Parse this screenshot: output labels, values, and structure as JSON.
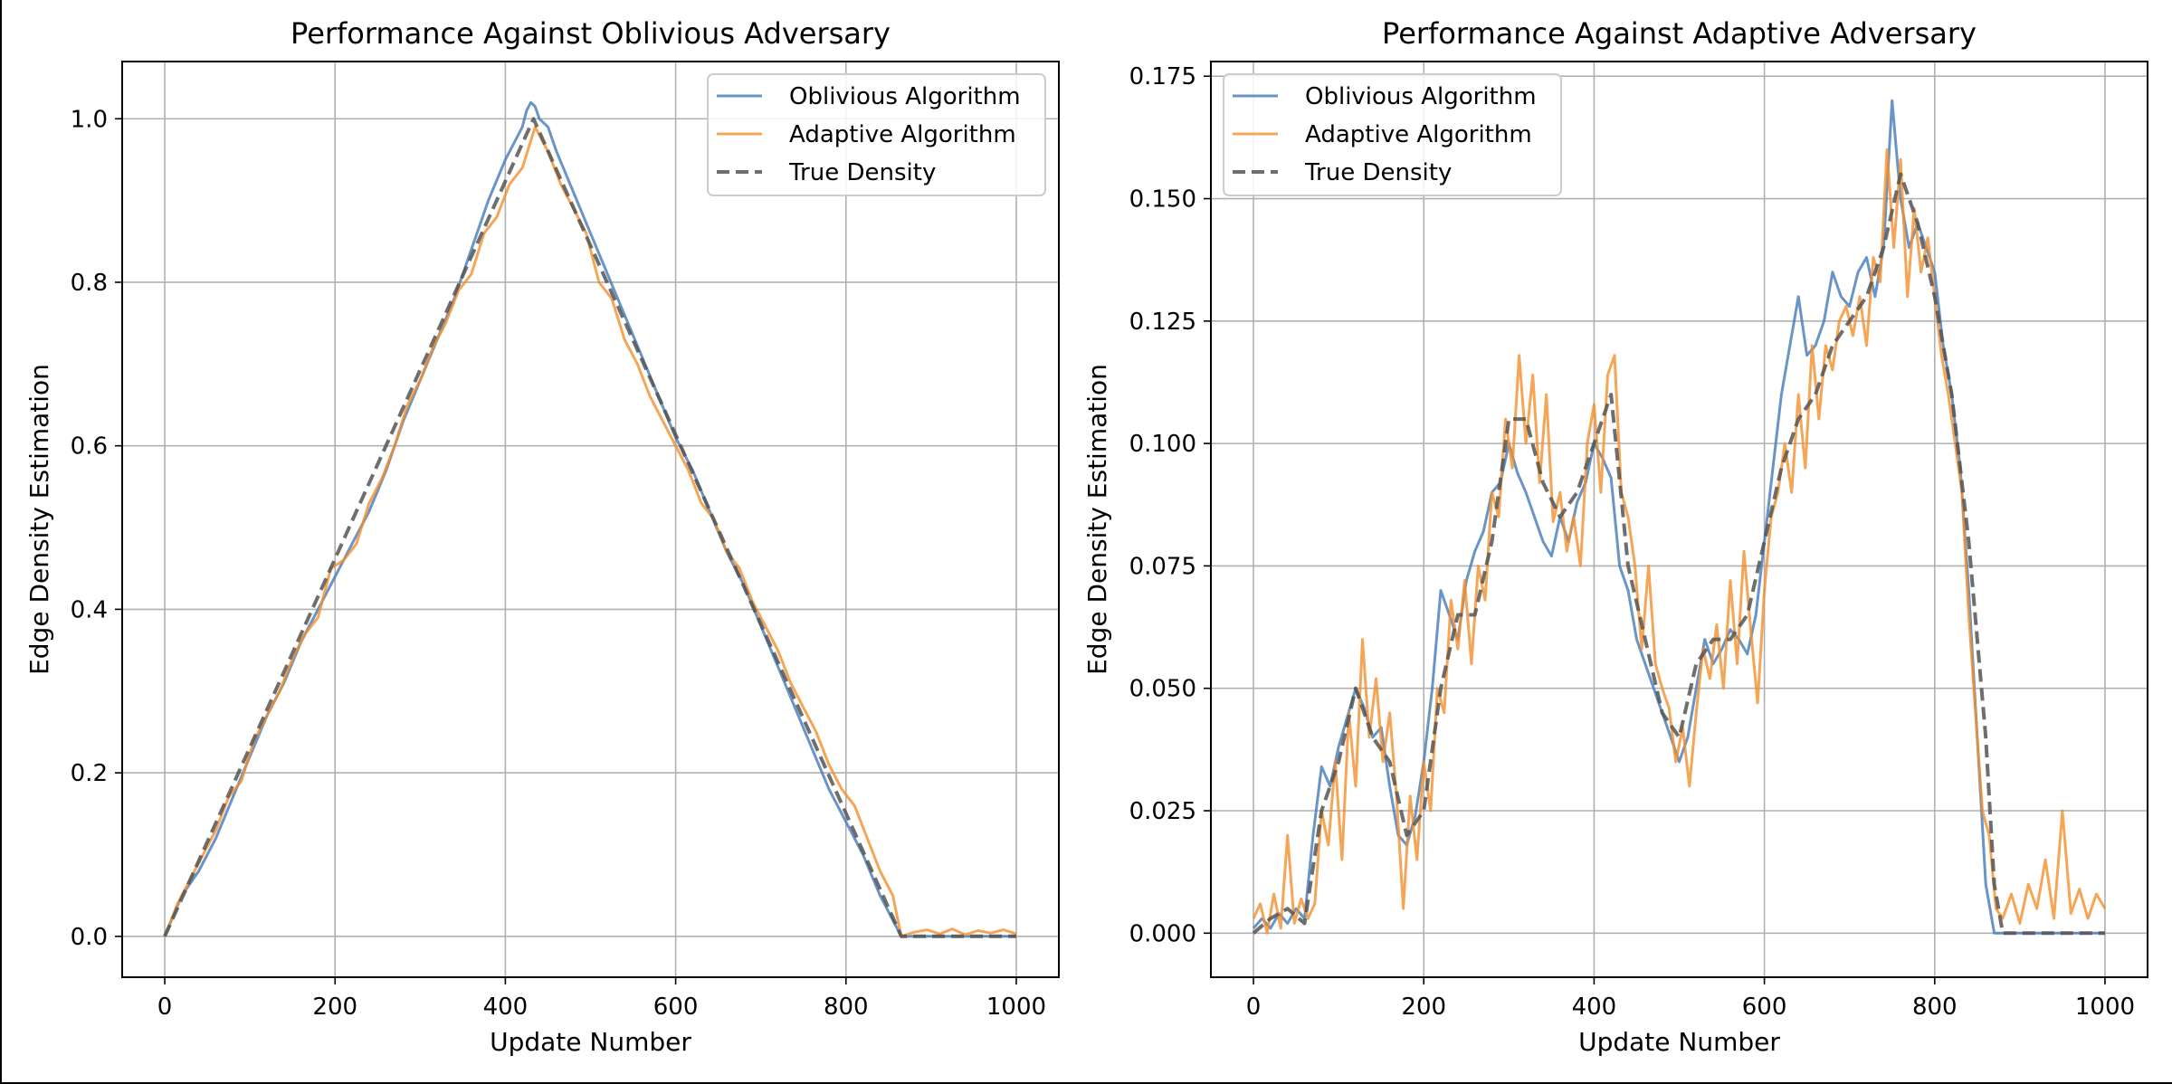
{
  "colors": {
    "oblivious": "#4f81bd",
    "adaptive": "#f28e2b",
    "true_density": "#555555",
    "grid": "#b0b0b0"
  },
  "chart_data": [
    {
      "type": "line",
      "title": "Performance Against Oblivious Adversary",
      "xlabel": "Update Number",
      "ylabel": "Edge Density Estimation",
      "xlim": [
        -50,
        1050
      ],
      "ylim": [
        -0.05,
        1.07
      ],
      "xticks": [
        0,
        200,
        400,
        600,
        800,
        1000
      ],
      "xtick_labels": [
        "0",
        "200",
        "400",
        "600",
        "800",
        "1000"
      ],
      "yticks": [
        0.0,
        0.2,
        0.4,
        0.6,
        0.8,
        1.0
      ],
      "ytick_labels": [
        "0.0",
        "0.2",
        "0.4",
        "0.6",
        "0.8",
        "1.0"
      ],
      "grid": true,
      "legend_position": "upper right",
      "series": [
        {
          "name": "Oblivious Algorithm",
          "style": "solid",
          "x": [
            0,
            20,
            40,
            60,
            80,
            100,
            120,
            140,
            160,
            180,
            200,
            220,
            240,
            260,
            280,
            300,
            320,
            340,
            360,
            380,
            400,
            410,
            420,
            425,
            430,
            435,
            440,
            450,
            460,
            480,
            500,
            520,
            540,
            560,
            580,
            600,
            620,
            640,
            660,
            680,
            700,
            720,
            740,
            760,
            780,
            800,
            820,
            840,
            860,
            865,
            880,
            900,
            920,
            940,
            960,
            980,
            1000
          ],
          "y": [
            0.0,
            0.05,
            0.08,
            0.12,
            0.17,
            0.22,
            0.27,
            0.31,
            0.36,
            0.4,
            0.44,
            0.48,
            0.52,
            0.57,
            0.63,
            0.68,
            0.73,
            0.78,
            0.84,
            0.9,
            0.95,
            0.97,
            0.99,
            1.01,
            1.02,
            1.015,
            1.0,
            0.99,
            0.96,
            0.91,
            0.86,
            0.81,
            0.76,
            0.71,
            0.66,
            0.61,
            0.57,
            0.52,
            0.47,
            0.43,
            0.38,
            0.33,
            0.28,
            0.23,
            0.18,
            0.14,
            0.1,
            0.05,
            0.01,
            0.0,
            0.0,
            0.0,
            0.0,
            0.0,
            0.0,
            0.0,
            0.0
          ]
        },
        {
          "name": "Adaptive Algorithm",
          "style": "solid",
          "x": [
            0,
            15,
            30,
            45,
            60,
            75,
            90,
            105,
            120,
            135,
            150,
            165,
            180,
            195,
            210,
            225,
            240,
            255,
            270,
            285,
            300,
            315,
            330,
            345,
            360,
            375,
            390,
            405,
            420,
            435,
            450,
            465,
            480,
            495,
            510,
            525,
            540,
            555,
            570,
            585,
            600,
            615,
            630,
            645,
            660,
            675,
            690,
            705,
            720,
            735,
            750,
            765,
            780,
            795,
            810,
            825,
            840,
            855,
            865,
            880,
            895,
            910,
            925,
            940,
            955,
            970,
            985,
            1000
          ],
          "y": [
            0.0,
            0.04,
            0.07,
            0.1,
            0.13,
            0.17,
            0.19,
            0.24,
            0.27,
            0.3,
            0.34,
            0.37,
            0.39,
            0.45,
            0.46,
            0.48,
            0.53,
            0.56,
            0.6,
            0.65,
            0.68,
            0.72,
            0.75,
            0.79,
            0.81,
            0.86,
            0.88,
            0.92,
            0.94,
            0.99,
            0.96,
            0.92,
            0.89,
            0.86,
            0.8,
            0.78,
            0.73,
            0.7,
            0.66,
            0.63,
            0.6,
            0.57,
            0.53,
            0.51,
            0.47,
            0.45,
            0.41,
            0.38,
            0.35,
            0.31,
            0.28,
            0.25,
            0.21,
            0.18,
            0.16,
            0.12,
            0.08,
            0.05,
            0.0,
            0.005,
            0.008,
            0.003,
            0.009,
            0.002,
            0.007,
            0.004,
            0.008,
            0.003
          ]
        },
        {
          "name": "True Density",
          "style": "dashed",
          "x": [
            0,
            433,
            865,
            1000
          ],
          "y": [
            0.0,
            1.0,
            0.0,
            0.0
          ]
        }
      ]
    },
    {
      "type": "line",
      "title": "Performance Against Adaptive Adversary",
      "xlabel": "Update Number",
      "ylabel": "Edge Density Estimation",
      "xlim": [
        -50,
        1050
      ],
      "ylim": [
        -0.009,
        0.178
      ],
      "xticks": [
        0,
        200,
        400,
        600,
        800,
        1000
      ],
      "xtick_labels": [
        "0",
        "200",
        "400",
        "600",
        "800",
        "1000"
      ],
      "yticks": [
        0.0,
        0.025,
        0.05,
        0.075,
        0.1,
        0.125,
        0.15,
        0.175
      ],
      "ytick_labels": [
        "0.000",
        "0.025",
        "0.050",
        "0.075",
        "0.100",
        "0.125",
        "0.150",
        "0.175"
      ],
      "grid": true,
      "legend_position": "upper left",
      "series": [
        {
          "name": "Oblivious Algorithm",
          "style": "solid",
          "x": [
            0,
            10,
            20,
            30,
            40,
            50,
            60,
            70,
            80,
            90,
            100,
            110,
            120,
            130,
            140,
            150,
            160,
            170,
            180,
            190,
            200,
            210,
            220,
            230,
            240,
            250,
            260,
            270,
            280,
            290,
            300,
            310,
            320,
            330,
            340,
            350,
            360,
            370,
            380,
            390,
            400,
            410,
            420,
            430,
            440,
            450,
            460,
            470,
            480,
            490,
            500,
            510,
            520,
            530,
            540,
            550,
            560,
            570,
            580,
            590,
            600,
            610,
            620,
            630,
            640,
            650,
            660,
            670,
            680,
            690,
            700,
            710,
            720,
            730,
            740,
            745,
            750,
            760,
            770,
            780,
            790,
            800,
            810,
            820,
            830,
            840,
            850,
            860,
            870,
            880,
            900,
            920,
            940,
            960,
            980,
            1000
          ],
          "y": [
            0.001,
            0.003,
            0.001,
            0.004,
            0.002,
            0.005,
            0.003,
            0.02,
            0.034,
            0.03,
            0.038,
            0.044,
            0.05,
            0.046,
            0.04,
            0.042,
            0.03,
            0.02,
            0.018,
            0.024,
            0.035,
            0.05,
            0.07,
            0.065,
            0.06,
            0.072,
            0.078,
            0.082,
            0.09,
            0.092,
            0.1,
            0.094,
            0.09,
            0.085,
            0.08,
            0.077,
            0.085,
            0.08,
            0.088,
            0.092,
            0.1,
            0.097,
            0.093,
            0.075,
            0.07,
            0.06,
            0.055,
            0.05,
            0.045,
            0.04,
            0.035,
            0.04,
            0.05,
            0.06,
            0.055,
            0.058,
            0.062,
            0.06,
            0.057,
            0.065,
            0.08,
            0.095,
            0.11,
            0.12,
            0.13,
            0.118,
            0.12,
            0.125,
            0.135,
            0.13,
            0.128,
            0.135,
            0.138,
            0.13,
            0.14,
            0.155,
            0.17,
            0.15,
            0.14,
            0.145,
            0.14,
            0.135,
            0.12,
            0.11,
            0.095,
            0.07,
            0.04,
            0.01,
            0.0,
            0.0,
            0.0,
            0.0,
            0.0,
            0.0,
            0.0,
            0.0
          ]
        },
        {
          "name": "Adaptive Algorithm",
          "style": "solid",
          "x": [
            0,
            8,
            16,
            24,
            32,
            40,
            48,
            56,
            64,
            72,
            80,
            88,
            96,
            104,
            112,
            120,
            128,
            136,
            144,
            152,
            160,
            168,
            176,
            184,
            192,
            200,
            208,
            216,
            224,
            232,
            240,
            248,
            256,
            264,
            272,
            280,
            288,
            296,
            304,
            312,
            320,
            328,
            336,
            344,
            352,
            360,
            368,
            376,
            384,
            392,
            400,
            408,
            416,
            424,
            432,
            440,
            448,
            456,
            464,
            472,
            480,
            488,
            496,
            504,
            512,
            520,
            528,
            536,
            544,
            552,
            560,
            568,
            576,
            584,
            592,
            600,
            608,
            616,
            624,
            632,
            640,
            648,
            656,
            664,
            672,
            680,
            688,
            696,
            704,
            712,
            720,
            728,
            736,
            744,
            752,
            760,
            768,
            776,
            784,
            792,
            800,
            808,
            816,
            824,
            832,
            840,
            848,
            856,
            864,
            872,
            880,
            890,
            900,
            910,
            920,
            930,
            940,
            950,
            960,
            970,
            980,
            990,
            1000
          ],
          "y": [
            0.003,
            0.006,
            0.0,
            0.008,
            0.001,
            0.02,
            0.002,
            0.007,
            0.003,
            0.006,
            0.025,
            0.018,
            0.035,
            0.015,
            0.045,
            0.03,
            0.06,
            0.04,
            0.052,
            0.035,
            0.045,
            0.028,
            0.005,
            0.028,
            0.015,
            0.035,
            0.025,
            0.05,
            0.045,
            0.068,
            0.058,
            0.072,
            0.055,
            0.075,
            0.068,
            0.09,
            0.085,
            0.105,
            0.095,
            0.118,
            0.1,
            0.114,
            0.092,
            0.11,
            0.084,
            0.09,
            0.078,
            0.085,
            0.075,
            0.1,
            0.108,
            0.09,
            0.114,
            0.118,
            0.09,
            0.085,
            0.075,
            0.058,
            0.075,
            0.055,
            0.05,
            0.046,
            0.035,
            0.042,
            0.03,
            0.045,
            0.058,
            0.052,
            0.063,
            0.05,
            0.072,
            0.055,
            0.078,
            0.062,
            0.047,
            0.07,
            0.085,
            0.09,
            0.1,
            0.09,
            0.11,
            0.095,
            0.12,
            0.105,
            0.12,
            0.115,
            0.125,
            0.128,
            0.122,
            0.13,
            0.12,
            0.138,
            0.133,
            0.16,
            0.14,
            0.158,
            0.13,
            0.148,
            0.135,
            0.142,
            0.13,
            0.118,
            0.11,
            0.1,
            0.09,
            0.065,
            0.045,
            0.025,
            0.02,
            0.005,
            0.003,
            0.008,
            0.002,
            0.01,
            0.005,
            0.015,
            0.003,
            0.025,
            0.004,
            0.009,
            0.003,
            0.008,
            0.005
          ]
        },
        {
          "name": "True Density",
          "style": "dashed",
          "x": [
            0,
            20,
            40,
            60,
            80,
            100,
            120,
            140,
            160,
            180,
            200,
            220,
            240,
            260,
            280,
            300,
            320,
            340,
            360,
            380,
            400,
            420,
            440,
            460,
            480,
            500,
            520,
            540,
            560,
            580,
            600,
            620,
            640,
            660,
            680,
            700,
            720,
            740,
            760,
            780,
            800,
            820,
            840,
            860,
            870,
            880,
            900,
            1000
          ],
          "y": [
            0.0,
            0.003,
            0.005,
            0.002,
            0.025,
            0.035,
            0.05,
            0.04,
            0.035,
            0.02,
            0.025,
            0.05,
            0.065,
            0.065,
            0.08,
            0.105,
            0.105,
            0.092,
            0.085,
            0.09,
            0.1,
            0.11,
            0.075,
            0.06,
            0.045,
            0.04,
            0.055,
            0.06,
            0.06,
            0.065,
            0.08,
            0.095,
            0.105,
            0.11,
            0.12,
            0.125,
            0.13,
            0.14,
            0.155,
            0.145,
            0.13,
            0.11,
            0.08,
            0.04,
            0.01,
            0.0,
            0.0,
            0.0
          ]
        }
      ]
    }
  ]
}
